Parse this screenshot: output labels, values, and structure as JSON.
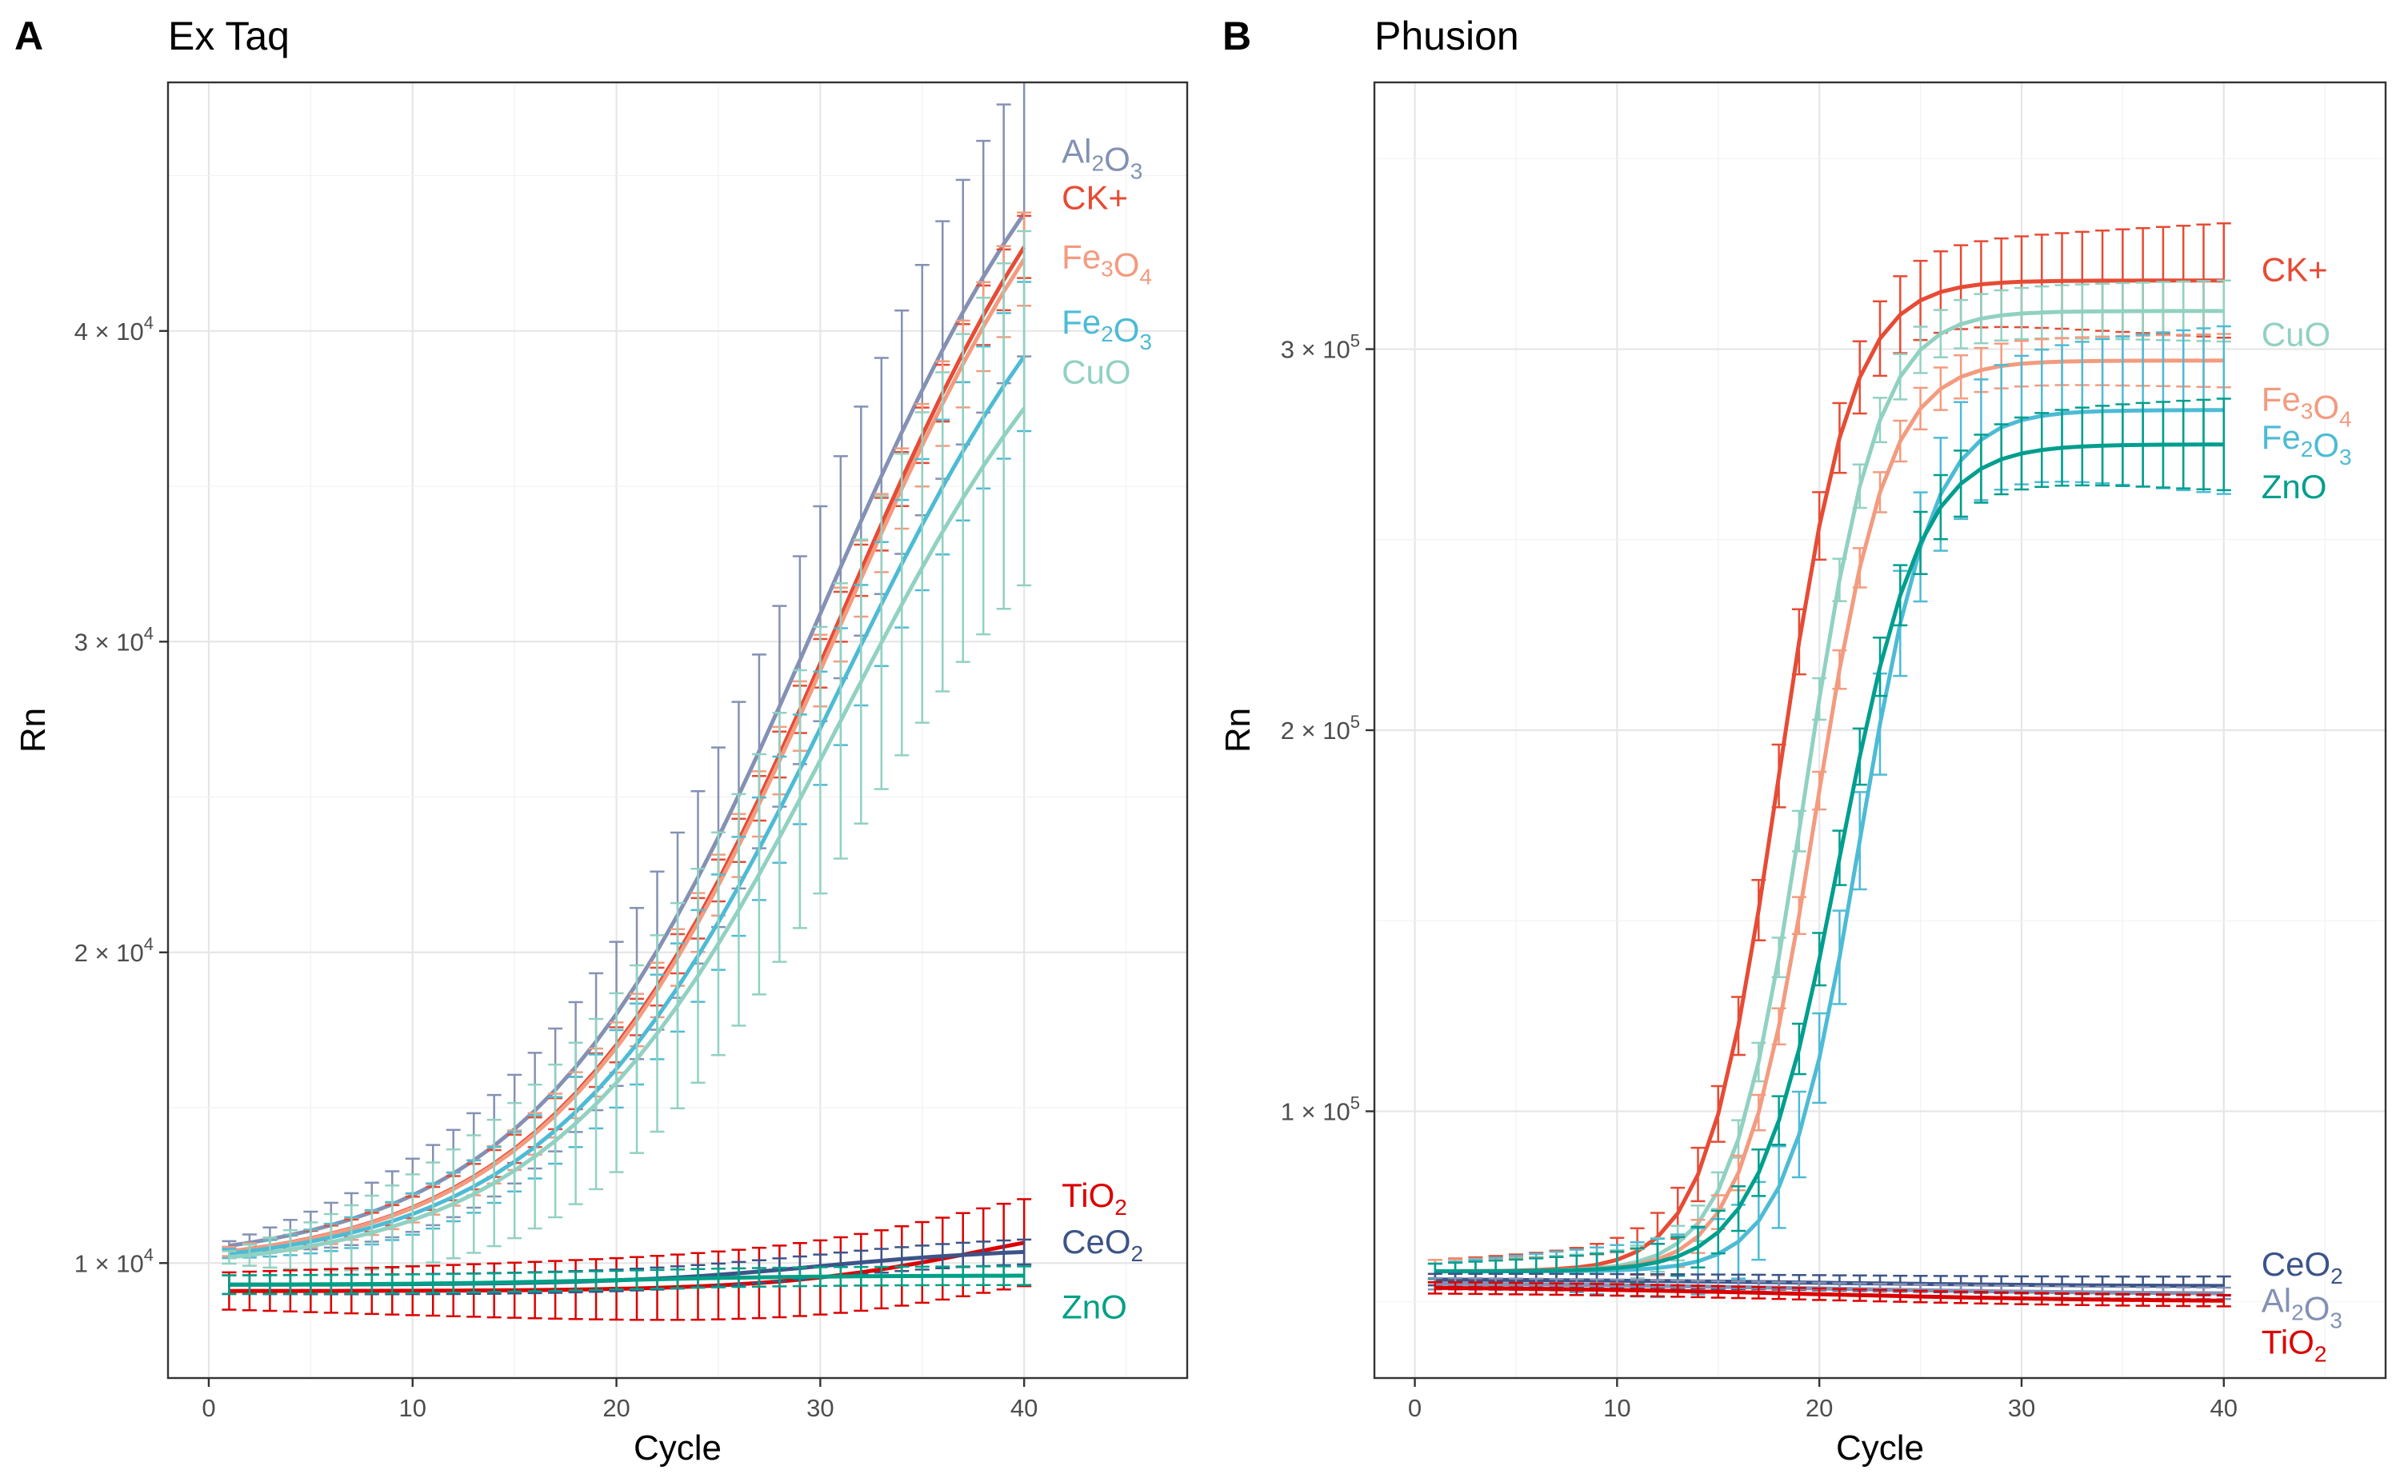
{
  "chart_data": [
    {
      "type": "line",
      "panel_letter": "A",
      "title": "Ex Taq",
      "xlabel": "Cycle",
      "ylabel": "Rn",
      "xlim": [
        -2,
        48
      ],
      "ylim": [
        6300,
        48000
      ],
      "x_ticks": [
        0,
        10,
        20,
        30,
        40
      ],
      "x_tick_labels": [
        "0",
        "10",
        "20",
        "30",
        "40"
      ],
      "y_ticks": [
        10000,
        20000,
        30000,
        40000
      ],
      "y_tick_labels": [
        {
          "base": "1 × 10",
          "exp": "4"
        },
        {
          "base": "2 × 10",
          "exp": "4"
        },
        {
          "base": "3 × 10",
          "exp": "4"
        },
        {
          "base": "4 × 10",
          "exp": "4"
        }
      ],
      "grid": true,
      "error_bars": true,
      "model": "sigmoid baseline + amplitude / (1 + exp(-(cycle - midpoint) / slope)), cycles 1–40",
      "series": [
        {
          "name": "Al2O3",
          "label_parts": [
            [
              "Al",
              0
            ],
            [
              "2",
              1
            ],
            [
              "O",
              0
            ],
            [
              "3",
              1
            ]
          ],
          "color": "#8491B4",
          "label_at": 45800,
          "baseline": 9900,
          "amplitude": 42000,
          "midpoint": 30,
          "slope": 7.0,
          "err_start": 150,
          "err_end": 4600
        },
        {
          "name": "CK+",
          "label_parts": [
            [
              "CK+",
              0
            ]
          ],
          "color": "#E64B35",
          "label_at": 44300,
          "baseline": 9800,
          "amplitude": 42000,
          "midpoint": 31,
          "slope": 7.0,
          "err_start": 150,
          "err_end": 1000
        },
        {
          "name": "Fe3O4",
          "label_parts": [
            [
              "Fe",
              0
            ],
            [
              "3",
              1
            ],
            [
              "O",
              0
            ],
            [
              "4",
              1
            ]
          ],
          "color": "#F39B7F",
          "label_at": 42400,
          "baseline": 9800,
          "amplitude": 41500,
          "midpoint": 31,
          "slope": 7.0,
          "err_start": 150,
          "err_end": 1500
        },
        {
          "name": "Fe2O3",
          "label_parts": [
            [
              "Fe",
              0
            ],
            [
              "2",
              1
            ],
            [
              "O",
              0
            ],
            [
              "3",
              1
            ]
          ],
          "color": "#4DBBD5",
          "label_at": 40300,
          "baseline": 9800,
          "amplitude": 37500,
          "midpoint": 31,
          "slope": 7.0,
          "err_start": 150,
          "err_end": 2400
        },
        {
          "name": "CuO",
          "label_parts": [
            [
              "CuO",
              0
            ]
          ],
          "color": "#91D1C2",
          "label_at": 38700,
          "baseline": 9700,
          "amplitude": 35500,
          "midpoint": 31,
          "slope": 7.0,
          "err_start": 200,
          "err_end": 5700
        },
        {
          "name": "TiO2",
          "label_parts": [
            [
              "TiO",
              0
            ],
            [
              "2",
              1
            ]
          ],
          "color": "#DC0000",
          "label_at": 12200,
          "baseline": 9100,
          "amplitude": 2600,
          "midpoint": 38,
          "slope": 5.0,
          "err_start": 600,
          "err_end": 1400
        },
        {
          "name": "CeO2",
          "label_parts": [
            [
              "CeO",
              0
            ],
            [
              "2",
              1
            ]
          ],
          "color": "#3C5488",
          "label_at": 10700,
          "baseline": 9300,
          "amplitude": 1200,
          "midpoint": 30,
          "slope": 5.0,
          "err_start": 300,
          "err_end": 400
        },
        {
          "name": "ZnO",
          "label_parts": [
            [
              "ZnO",
              0
            ]
          ],
          "color": "#00A087",
          "label_at": 8600,
          "baseline": 9300,
          "amplitude": 300,
          "midpoint": 20,
          "slope": 5.0,
          "err_start": 300,
          "err_end": 300
        }
      ]
    },
    {
      "type": "line",
      "panel_letter": "B",
      "title": "Phusion",
      "xlabel": "Cycle",
      "ylabel": "Rn",
      "xlim": [
        -2,
        48
      ],
      "ylim": [
        30000,
        370000
      ],
      "x_ticks": [
        0,
        10,
        20,
        30,
        40
      ],
      "x_tick_labels": [
        "0",
        "10",
        "20",
        "30",
        "40"
      ],
      "y_ticks": [
        100000,
        200000,
        300000
      ],
      "y_tick_labels": [
        {
          "base": "1 × 10",
          "exp": "5"
        },
        {
          "base": "2 × 10",
          "exp": "5"
        },
        {
          "base": "3 × 10",
          "exp": "5"
        }
      ],
      "grid": true,
      "error_bars": true,
      "model": "sigmoid baseline + amplitude / (1 + exp(-(cycle - midpoint) / slope)), cycles 1–40",
      "series": [
        {
          "name": "CK+",
          "label_parts": [
            [
              "CK+",
              0
            ]
          ],
          "color": "#E64B35",
          "label_at": 321000,
          "baseline": 58000,
          "amplitude": 260000,
          "midpoint": 18,
          "slope": 1.8,
          "err_start": 3000,
          "err_end": 15000
        },
        {
          "name": "CuO",
          "label_parts": [
            [
              "CuO",
              0
            ]
          ],
          "color": "#91D1C2",
          "label_at": 304000,
          "baseline": 58000,
          "amplitude": 252000,
          "midpoint": 19.3,
          "slope": 1.8,
          "err_start": 3000,
          "err_end": 8000
        },
        {
          "name": "Fe3O4",
          "label_parts": [
            [
              "Fe",
              0
            ],
            [
              "3",
              1
            ],
            [
              "O",
              0
            ],
            [
              "4",
              1
            ]
          ],
          "color": "#F39B7F",
          "label_at": 287000,
          "baseline": 58000,
          "amplitude": 239000,
          "midpoint": 19.8,
          "slope": 1.8,
          "err_start": 3000,
          "err_end": 7000
        },
        {
          "name": "Fe2O3",
          "label_parts": [
            [
              "Fe",
              0
            ],
            [
              "2",
              1
            ],
            [
              "O",
              0
            ],
            [
              "3",
              1
            ]
          ],
          "color": "#4DBBD5",
          "label_at": 277000,
          "baseline": 58000,
          "amplitude": 226000,
          "midpoint": 22,
          "slope": 1.8,
          "err_start": 2000,
          "err_end": 22000
        },
        {
          "name": "ZnO",
          "label_parts": [
            [
              "ZnO",
              0
            ]
          ],
          "color": "#009E8E",
          "label_at": 264000,
          "baseline": 58000,
          "amplitude": 217000,
          "midpoint": 21,
          "slope": 2.0,
          "err_start": 2000,
          "err_end": 12000
        },
        {
          "name": "CeO2",
          "label_parts": [
            [
              "CeO",
              0
            ],
            [
              "2",
              1
            ]
          ],
          "color": "#3C5488",
          "label_at": 60000,
          "baseline": 56000,
          "amplitude": -2000,
          "midpoint": 20,
          "slope": 8.0,
          "err_start": 1500,
          "err_end": 2500
        },
        {
          "name": "Al2O3",
          "label_parts": [
            [
              "Al",
              0
            ],
            [
              "2",
              1
            ],
            [
              "O",
              0
            ],
            [
              "3",
              1
            ]
          ],
          "color": "#8491B4",
          "label_at": 50500,
          "baseline": 55000,
          "amplitude": -3000,
          "midpoint": 20,
          "slope": 8.0,
          "err_start": 1500,
          "err_end": 1500
        },
        {
          "name": "TiO2",
          "label_parts": [
            [
              "TiO",
              0
            ],
            [
              "2",
              1
            ]
          ],
          "color": "#DC0000",
          "label_at": 39500,
          "baseline": 54000,
          "amplitude": -4000,
          "midpoint": 20,
          "slope": 8.0,
          "err_start": 1500,
          "err_end": 1500
        }
      ]
    }
  ]
}
